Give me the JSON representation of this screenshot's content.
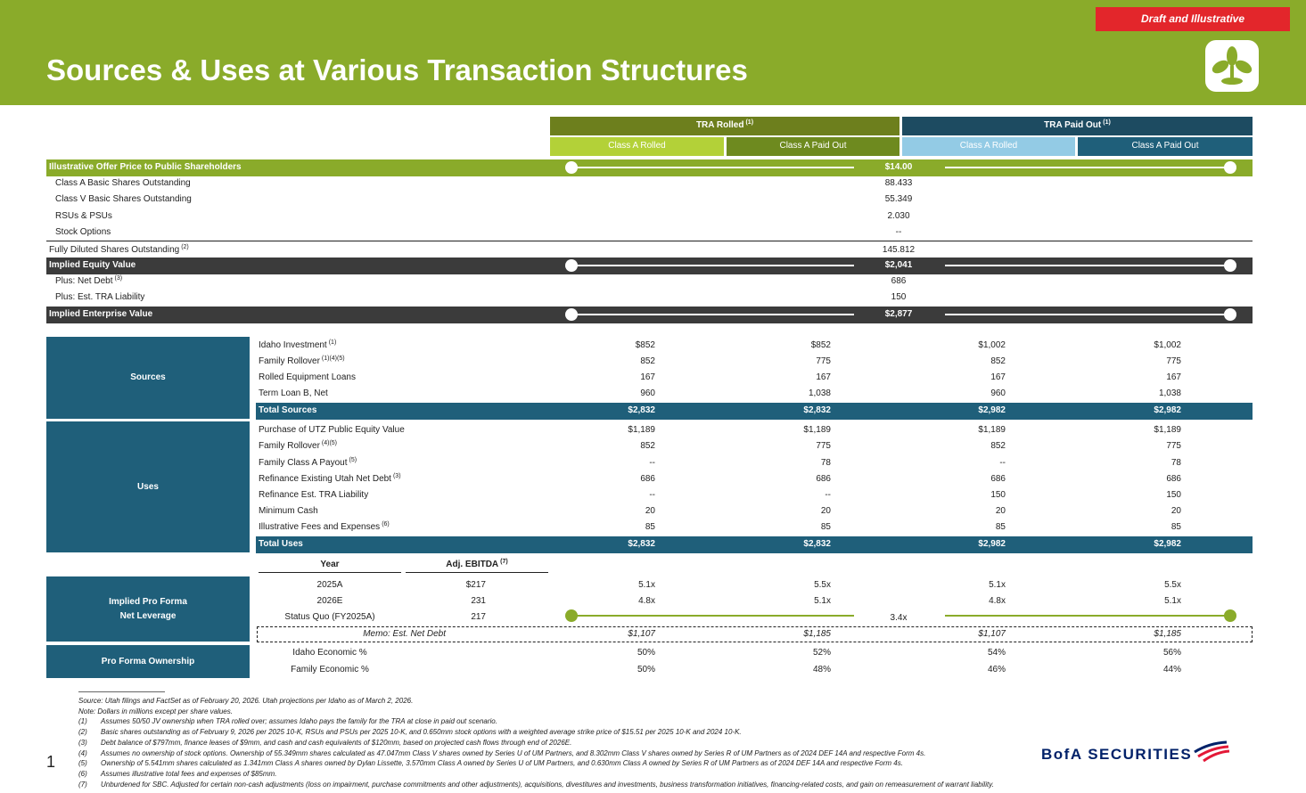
{
  "badge": "Draft and Illustrative",
  "title": "Sources & Uses at Various Transaction Structures",
  "brand": "BofA SECURITIES",
  "page_number": "1",
  "column_groups": [
    {
      "label": "TRA Rolled",
      "note": "(1)"
    },
    {
      "label": "TRA Paid Out",
      "note": "(1)"
    }
  ],
  "columns": [
    "Class A Rolled",
    "Class A Paid Out",
    "Class A Rolled",
    "Class A Paid Out"
  ],
  "offer": {
    "label": "Illustrative Offer Price to Public Shareholders",
    "value": "$14.00"
  },
  "shares": [
    {
      "label": "Class A Basic Shares Outstanding",
      "value": "88.433"
    },
    {
      "label": "Class V Basic Shares Outstanding",
      "value": "55.349"
    },
    {
      "label": "RSUs & PSUs",
      "value": "2.030"
    },
    {
      "label": "Stock Options",
      "value": "--"
    }
  ],
  "fully_diluted": {
    "label": "Fully Diluted Shares Outstanding",
    "note": "(2)",
    "value": "145.812"
  },
  "equity": {
    "label": "Implied Equity Value",
    "value": "$2,041"
  },
  "ev_items": [
    {
      "label": "Plus: Net Debt",
      "note": "(3)",
      "value": "686"
    },
    {
      "label": "Plus: Est. TRA Liability",
      "value": "150"
    }
  ],
  "ev": {
    "label": "Implied Enterprise Value",
    "value": "$2,877"
  },
  "sources": {
    "label": "Sources",
    "rows": [
      {
        "label": "Idaho Investment",
        "note": "(1)",
        "values": [
          "$852",
          "$852",
          "$1,002",
          "$1,002"
        ]
      },
      {
        "label": "Family Rollover",
        "note": "(1)(4)(5)",
        "values": [
          "852",
          "775",
          "852",
          "775"
        ]
      },
      {
        "label": "Rolled Equipment Loans",
        "values": [
          "167",
          "167",
          "167",
          "167"
        ]
      },
      {
        "label": "Term Loan B, Net",
        "values": [
          "960",
          "1,038",
          "960",
          "1,038"
        ]
      }
    ],
    "total": {
      "label": "Total Sources",
      "values": [
        "$2,832",
        "$2,832",
        "$2,982",
        "$2,982"
      ]
    }
  },
  "uses": {
    "label": "Uses",
    "rows": [
      {
        "label": "Purchase of UTZ Public Equity Value",
        "values": [
          "$1,189",
          "$1,189",
          "$1,189",
          "$1,189"
        ]
      },
      {
        "label": "Family Rollover",
        "note": "(4)(5)",
        "values": [
          "852",
          "775",
          "852",
          "775"
        ]
      },
      {
        "label": "Family Class A Payout",
        "note": "(5)",
        "values": [
          "--",
          "78",
          "--",
          "78"
        ]
      },
      {
        "label": "Refinance Existing Utah Net Debt",
        "note": "(3)",
        "values": [
          "686",
          "686",
          "686",
          "686"
        ]
      },
      {
        "label": "Refinance Est. TRA Liability",
        "values": [
          "--",
          "--",
          "150",
          "150"
        ]
      },
      {
        "label": "Minimum Cash",
        "values": [
          "20",
          "20",
          "20",
          "20"
        ]
      },
      {
        "label": "Illustrative Fees and Expenses",
        "note": "(6)",
        "values": [
          "85",
          "85",
          "85",
          "85"
        ]
      }
    ],
    "total": {
      "label": "Total Uses",
      "values": [
        "$2,832",
        "$2,832",
        "$2,982",
        "$2,982"
      ]
    }
  },
  "leverage": {
    "label_lines": [
      "Implied Pro Forma",
      "Net Leverage"
    ],
    "year_header": "Year",
    "ebitda_header": "Adj. EBITDA",
    "ebitda_note": "(7)",
    "rows": [
      {
        "year": "2025A",
        "ebitda": "$217",
        "values": [
          "5.1x",
          "5.5x",
          "5.1x",
          "5.5x"
        ]
      },
      {
        "year": "2026E",
        "ebitda": "231",
        "values": [
          "4.8x",
          "5.1x",
          "4.8x",
          "5.1x"
        ]
      }
    ],
    "status_quo": {
      "year": "Status Quo (FY2025A)",
      "ebitda": "217",
      "value": "3.4x"
    },
    "memo": {
      "label": "Memo: Est. Net Debt",
      "values": [
        "$1,107",
        "$1,185",
        "$1,107",
        "$1,185"
      ]
    }
  },
  "ownership": {
    "label": "Pro Forma Ownership",
    "rows": [
      {
        "label": "Idaho Economic %",
        "values": [
          "50%",
          "52%",
          "54%",
          "56%"
        ]
      },
      {
        "label": "Family Economic %",
        "values": [
          "50%",
          "48%",
          "46%",
          "44%"
        ]
      }
    ]
  },
  "footnotes": [
    {
      "text": "Source: Utah filings and FactSet as of February 20, 2026. Utah projections per Idaho as of March 2, 2026."
    },
    {
      "text": "Note: Dollars in millions except per share values."
    },
    {
      "marker": "(1)",
      "text": "Assumes 50/50 JV ownership when TRA rolled over; assumes Idaho pays the family for the TRA at close in paid out scenario."
    },
    {
      "marker": "(2)",
      "text": "Basic shares outstanding as of February 9, 2026 per 2025 10-K, RSUs and PSUs per 2025 10-K, and 0.650mm stock options with a weighted average strike price of $15.51 per 2025 10-K and 2024 10-K."
    },
    {
      "marker": "(3)",
      "text": "Debt balance of $797mm, finance leases of $9mm, and cash and cash equivalents of $120mm, based on projected cash flows through end of 2026E."
    },
    {
      "marker": "(4)",
      "text": "Assumes no ownership of stock options. Ownership of 55.349mm shares calculated as 47.047mm Class V shares owned by Series U of UM Partners, and 8.302mm Class V shares owned by Series R of UM Partners as of 2024 DEF 14A and respective Form 4s."
    },
    {
      "marker": "(5)",
      "text": "Ownership of 5.541mm shares calculated as 1.341mm Class A shares owned by Dylan Lissette, 3.570mm Class A owned by Series U of UM Partners, and 0.630mm Class A owned by Series R of UM Partners as of 2024 DEF 14A and respective Form 4s."
    },
    {
      "marker": "(6)",
      "text": "Assumes illustrative total fees and expenses of $85mm."
    },
    {
      "marker": "(7)",
      "text": "Unburdened for SBC. Adjusted for certain non-cash adjustments (loss on impairment, purchase commitments and other adjustments), acquisitions, divestitures and investments, business transformation initiatives, financing-related costs, and gain on remeasurement of warrant liability."
    }
  ]
}
